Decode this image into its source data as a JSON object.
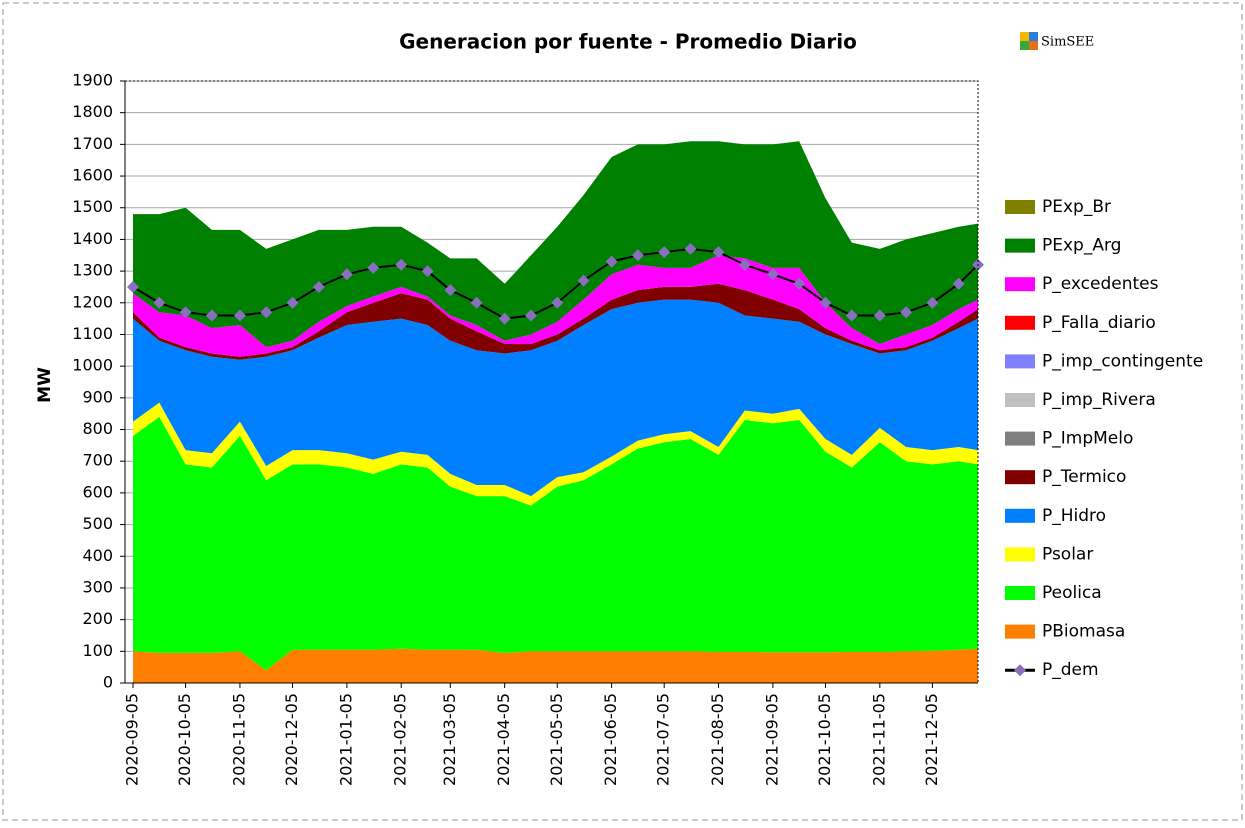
{
  "chart_data": {
    "type": "stacked_area",
    "title": "Generacion por fuente - Promedio Diario",
    "logo_text": "SimSEE",
    "y_label": "MW",
    "x": [
      "2020-09-05",
      "2020-09-20",
      "2020-10-05",
      "2020-10-20",
      "2020-11-05",
      "2020-11-20",
      "2020-12-05",
      "2020-12-20",
      "2021-01-05",
      "2021-01-20",
      "2021-02-05",
      "2021-02-20",
      "2021-03-05",
      "2021-03-20",
      "2021-04-05",
      "2021-04-20",
      "2021-05-05",
      "2021-05-20",
      "2021-06-05",
      "2021-06-20",
      "2021-07-05",
      "2021-07-20",
      "2021-08-05",
      "2021-08-20",
      "2021-09-05",
      "2021-09-20",
      "2021-10-05",
      "2021-10-20",
      "2021-11-05",
      "2021-11-20",
      "2021-12-05",
      "2021-12-20",
      "2021-12-31"
    ],
    "xlim": [
      "2020-09-05",
      "2021-12-31"
    ],
    "xticks": [
      "2020-09-05",
      "2020-10-05",
      "2020-11-05",
      "2020-12-05",
      "2021-01-05",
      "2021-02-05",
      "2021-03-05",
      "2021-04-05",
      "2021-05-05",
      "2021-06-05",
      "2021-07-05",
      "2021-08-05",
      "2021-09-05",
      "2021-10-05",
      "2021-11-05",
      "2021-12-05"
    ],
    "ylim": [
      0,
      1900
    ],
    "yticks": [
      0,
      100,
      200,
      300,
      400,
      500,
      600,
      700,
      800,
      900,
      1000,
      1100,
      1200,
      1300,
      1400,
      1500,
      1600,
      1700,
      1800,
      1900
    ],
    "grid": true,
    "legend": "right",
    "series": [
      {
        "name": "PBiomasa",
        "color": "#ff7f00",
        "values": [
          100,
          95,
          95,
          95,
          100,
          40,
          105,
          105,
          105,
          105,
          108,
          105,
          105,
          105,
          95,
          100,
          100,
          100,
          100,
          100,
          100,
          100,
          98,
          98,
          97,
          97,
          97,
          98,
          98,
          100,
          102,
          105,
          108
        ]
      },
      {
        "name": "Peolica",
        "color": "#00ff00",
        "values": [
          680,
          745,
          595,
          585,
          680,
          600,
          585,
          585,
          575,
          555,
          582,
          575,
          515,
          485,
          495,
          460,
          520,
          540,
          590,
          640,
          660,
          670,
          622,
          732,
          723,
          733,
          633,
          582,
          662,
          600,
          588,
          595,
          582
        ]
      },
      {
        "name": "Psolar",
        "color": "#ffff00",
        "values": [
          45,
          45,
          45,
          45,
          45,
          45,
          45,
          45,
          45,
          45,
          40,
          40,
          40,
          35,
          35,
          30,
          30,
          25,
          25,
          25,
          25,
          25,
          25,
          30,
          30,
          35,
          40,
          40,
          45,
          45,
          45,
          45,
          45
        ]
      },
      {
        "name": "P_Hidro",
        "color": "#0080ff",
        "values": [
          325,
          195,
          315,
          305,
          195,
          345,
          315,
          355,
          405,
          435,
          420,
          410,
          420,
          425,
          415,
          460,
          430,
          465,
          465,
          435,
          425,
          415,
          455,
          300,
          300,
          275,
          330,
          350,
          235,
          305,
          345,
          375,
          415
        ]
      },
      {
        "name": "P_Termico",
        "color": "#800000",
        "values": [
          20,
          10,
          10,
          10,
          10,
          10,
          10,
          20,
          40,
          60,
          80,
          80,
          70,
          60,
          30,
          20,
          20,
          20,
          30,
          40,
          40,
          40,
          60,
          80,
          60,
          40,
          20,
          10,
          10,
          10,
          10,
          20,
          30
        ]
      },
      {
        "name": "P_ImpMelo",
        "color": "#808080",
        "values": [
          0,
          0,
          0,
          0,
          0,
          0,
          0,
          0,
          0,
          0,
          0,
          0,
          0,
          0,
          0,
          0,
          0,
          0,
          0,
          0,
          0,
          0,
          0,
          0,
          0,
          0,
          0,
          0,
          0,
          0,
          0,
          0,
          0
        ]
      },
      {
        "name": "P_imp_Rivera",
        "color": "#c0c0c0",
        "values": [
          0,
          0,
          0,
          0,
          0,
          0,
          0,
          0,
          0,
          0,
          0,
          0,
          0,
          0,
          0,
          0,
          0,
          0,
          0,
          0,
          0,
          0,
          0,
          0,
          0,
          0,
          0,
          0,
          0,
          0,
          0,
          0,
          0
        ]
      },
      {
        "name": "P_imp_contingente",
        "color": "#8080ff",
        "values": [
          0,
          0,
          0,
          0,
          0,
          0,
          0,
          0,
          0,
          0,
          0,
          0,
          0,
          0,
          0,
          0,
          0,
          0,
          0,
          0,
          0,
          0,
          0,
          0,
          0,
          0,
          0,
          0,
          0,
          0,
          0,
          0,
          0
        ]
      },
      {
        "name": "P_Falla_diario",
        "color": "#ff0000",
        "values": [
          0,
          0,
          0,
          0,
          0,
          0,
          0,
          0,
          0,
          0,
          0,
          0,
          0,
          0,
          0,
          0,
          0,
          0,
          0,
          0,
          0,
          0,
          0,
          0,
          0,
          0,
          0,
          0,
          0,
          0,
          0,
          0,
          0
        ]
      },
      {
        "name": "P_excedentes",
        "color": "#ff00ff",
        "values": [
          60,
          80,
          100,
          80,
          100,
          20,
          20,
          30,
          20,
          20,
          20,
          10,
          10,
          20,
          10,
          30,
          40,
          60,
          80,
          80,
          60,
          60,
          90,
          100,
          100,
          130,
          80,
          40,
          20,
          40,
          40,
          40,
          30
        ]
      },
      {
        "name": "PExp_Arg",
        "color": "#008000",
        "values": [
          250,
          310,
          340,
          310,
          300,
          310,
          320,
          290,
          240,
          220,
          190,
          170,
          180,
          210,
          180,
          250,
          300,
          330,
          370,
          380,
          390,
          400,
          360,
          360,
          390,
          400,
          330,
          270,
          300,
          300,
          290,
          260,
          240
        ]
      },
      {
        "name": "PExp_Br",
        "color": "#808000",
        "values": [
          0,
          0,
          0,
          0,
          0,
          0,
          0,
          0,
          0,
          0,
          0,
          0,
          0,
          0,
          0,
          0,
          0,
          0,
          0,
          0,
          0,
          0,
          0,
          0,
          0,
          0,
          0,
          0,
          0,
          0,
          0,
          0,
          0
        ]
      }
    ],
    "line": {
      "name": "P_dem",
      "color": "#000000",
      "marker_color": "#8a6fc0",
      "values": [
        1250,
        1200,
        1170,
        1160,
        1160,
        1170,
        1200,
        1250,
        1290,
        1310,
        1320,
        1300,
        1240,
        1200,
        1150,
        1160,
        1200,
        1270,
        1330,
        1350,
        1360,
        1370,
        1360,
        1320,
        1290,
        1260,
        1200,
        1160,
        1160,
        1170,
        1200,
        1260,
        1320
      ]
    }
  }
}
